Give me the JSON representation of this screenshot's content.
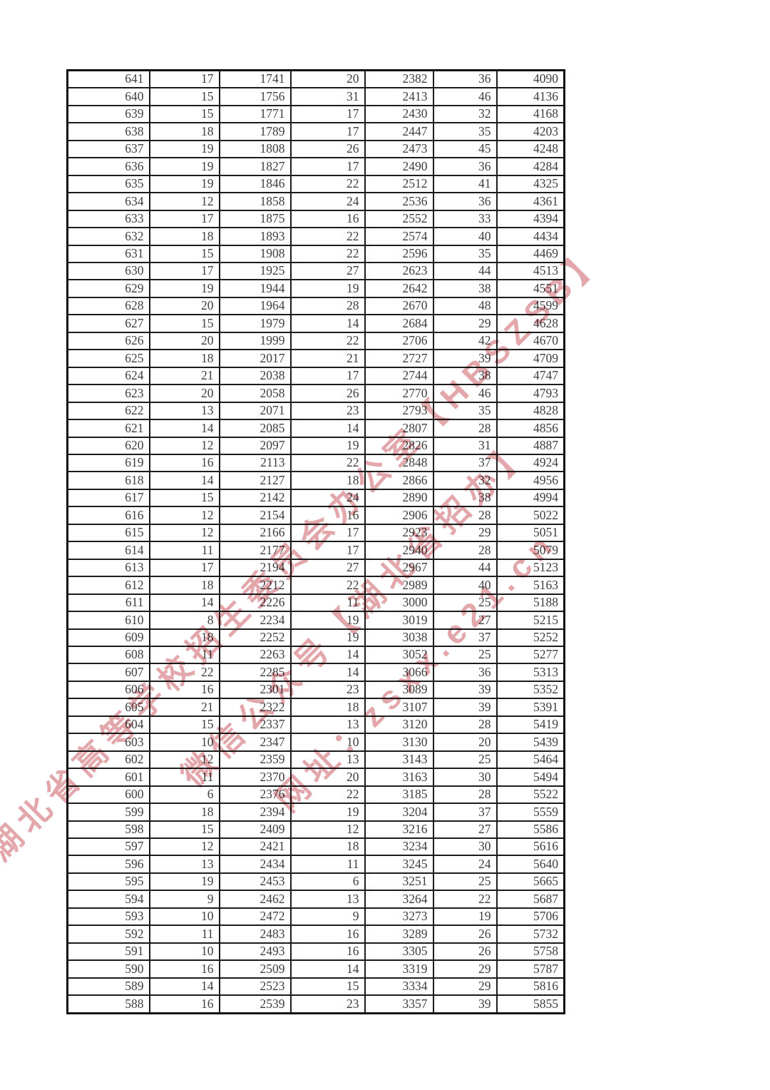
{
  "page": {
    "background": "#ffffff"
  },
  "watermark": {
    "color": "rgba(201,83,92,0.55)",
    "lines": [
      "湖北省高等学校招生委员会办公室【HBSZSB】",
      "微信公众号【湖北省招办】",
      "网址：zsxx.e21.cn"
    ]
  },
  "table": {
    "rows": [
      [
        641,
        17,
        1741,
        20,
        2382,
        36,
        4090
      ],
      [
        640,
        15,
        1756,
        31,
        2413,
        46,
        4136
      ],
      [
        639,
        15,
        1771,
        17,
        2430,
        32,
        4168
      ],
      [
        638,
        18,
        1789,
        17,
        2447,
        35,
        4203
      ],
      [
        637,
        19,
        1808,
        26,
        2473,
        45,
        4248
      ],
      [
        636,
        19,
        1827,
        17,
        2490,
        36,
        4284
      ],
      [
        635,
        19,
        1846,
        22,
        2512,
        41,
        4325
      ],
      [
        634,
        12,
        1858,
        24,
        2536,
        36,
        4361
      ],
      [
        633,
        17,
        1875,
        16,
        2552,
        33,
        4394
      ],
      [
        632,
        18,
        1893,
        22,
        2574,
        40,
        4434
      ],
      [
        631,
        15,
        1908,
        22,
        2596,
        35,
        4469
      ],
      [
        630,
        17,
        1925,
        27,
        2623,
        44,
        4513
      ],
      [
        629,
        19,
        1944,
        19,
        2642,
        38,
        4551
      ],
      [
        628,
        20,
        1964,
        28,
        2670,
        48,
        4599
      ],
      [
        627,
        15,
        1979,
        14,
        2684,
        29,
        4628
      ],
      [
        626,
        20,
        1999,
        22,
        2706,
        42,
        4670
      ],
      [
        625,
        18,
        2017,
        21,
        2727,
        39,
        4709
      ],
      [
        624,
        21,
        2038,
        17,
        2744,
        38,
        4747
      ],
      [
        623,
        20,
        2058,
        26,
        2770,
        46,
        4793
      ],
      [
        622,
        13,
        2071,
        23,
        2793,
        35,
        4828
      ],
      [
        621,
        14,
        2085,
        14,
        2807,
        28,
        4856
      ],
      [
        620,
        12,
        2097,
        19,
        2826,
        31,
        4887
      ],
      [
        619,
        16,
        2113,
        22,
        2848,
        37,
        4924
      ],
      [
        618,
        14,
        2127,
        18,
        2866,
        32,
        4956
      ],
      [
        617,
        15,
        2142,
        24,
        2890,
        38,
        4994
      ],
      [
        616,
        12,
        2154,
        16,
        2906,
        28,
        5022
      ],
      [
        615,
        12,
        2166,
        17,
        2923,
        29,
        5051
      ],
      [
        614,
        11,
        2177,
        17,
        2940,
        28,
        5079
      ],
      [
        613,
        17,
        2194,
        27,
        2967,
        44,
        5123
      ],
      [
        612,
        18,
        2212,
        22,
        2989,
        40,
        5163
      ],
      [
        611,
        14,
        2226,
        11,
        3000,
        25,
        5188
      ],
      [
        610,
        8,
        2234,
        19,
        3019,
        27,
        5215
      ],
      [
        609,
        18,
        2252,
        19,
        3038,
        37,
        5252
      ],
      [
        608,
        11,
        2263,
        14,
        3052,
        25,
        5277
      ],
      [
        607,
        22,
        2285,
        14,
        3066,
        36,
        5313
      ],
      [
        606,
        16,
        2301,
        23,
        3089,
        39,
        5352
      ],
      [
        605,
        21,
        2322,
        18,
        3107,
        39,
        5391
      ],
      [
        604,
        15,
        2337,
        13,
        3120,
        28,
        5419
      ],
      [
        603,
        10,
        2347,
        10,
        3130,
        20,
        5439
      ],
      [
        602,
        12,
        2359,
        13,
        3143,
        25,
        5464
      ],
      [
        601,
        11,
        2370,
        20,
        3163,
        30,
        5494
      ],
      [
        600,
        6,
        2376,
        22,
        3185,
        28,
        5522
      ],
      [
        599,
        18,
        2394,
        19,
        3204,
        37,
        5559
      ],
      [
        598,
        15,
        2409,
        12,
        3216,
        27,
        5586
      ],
      [
        597,
        12,
        2421,
        18,
        3234,
        30,
        5616
      ],
      [
        596,
        13,
        2434,
        11,
        3245,
        24,
        5640
      ],
      [
        595,
        19,
        2453,
        6,
        3251,
        25,
        5665
      ],
      [
        594,
        9,
        2462,
        13,
        3264,
        22,
        5687
      ],
      [
        593,
        10,
        2472,
        9,
        3273,
        19,
        5706
      ],
      [
        592,
        11,
        2483,
        16,
        3289,
        26,
        5732
      ],
      [
        591,
        10,
        2493,
        16,
        3305,
        26,
        5758
      ],
      [
        590,
        16,
        2509,
        14,
        3319,
        29,
        5787
      ],
      [
        589,
        14,
        2523,
        15,
        3334,
        29,
        5816
      ],
      [
        588,
        16,
        2539,
        23,
        3357,
        39,
        5855
      ]
    ]
  }
}
